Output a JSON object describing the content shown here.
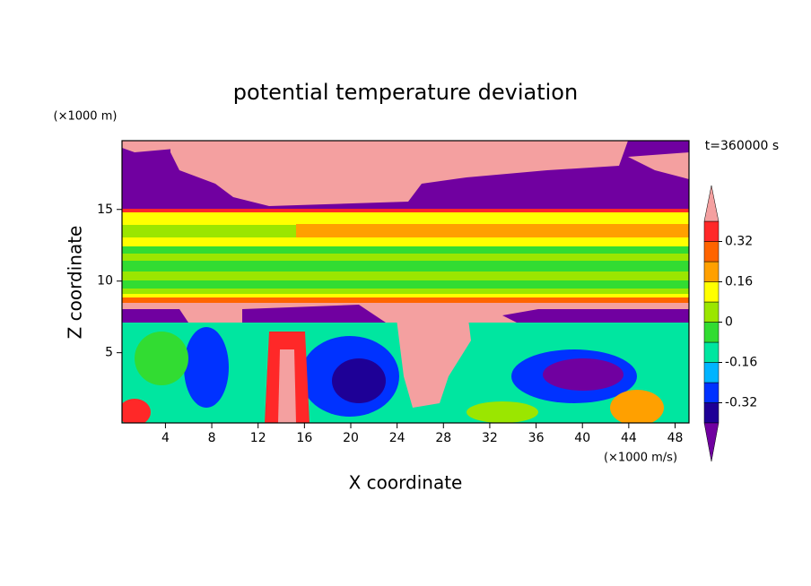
{
  "chart_data": {
    "type": "contour",
    "title": "potential temperature deviation",
    "x_label": "X coordinate",
    "y_label": "Z coordinate",
    "x_unit": "(×1000 m/s)",
    "y_unit": "(×1000 m)",
    "time_label": "t=360000 s",
    "xlim": [
      0.25,
      49.2
    ],
    "xticks": [
      4,
      8,
      12,
      16,
      20,
      24,
      28,
      32,
      36,
      40,
      44,
      48
    ],
    "ylim": [
      0.1,
      19.8
    ],
    "yticks": [
      5,
      10,
      15
    ],
    "colorbar": {
      "levels": [
        -0.4,
        -0.32,
        -0.24,
        -0.16,
        -0.08,
        0,
        0.08,
        0.16,
        0.24,
        0.32,
        0.4
      ],
      "colors": [
        "#7000a0",
        "#1e0096",
        "#0032ff",
        "#00b4ff",
        "#00e6a0",
        "#32dc32",
        "#9be600",
        "#ffff00",
        "#ffa000",
        "#ff6400",
        "#ff2828",
        "#f4a0a0"
      ],
      "ticks": [
        -0.32,
        -0.16,
        0,
        0.16,
        0.32
      ]
    }
  }
}
